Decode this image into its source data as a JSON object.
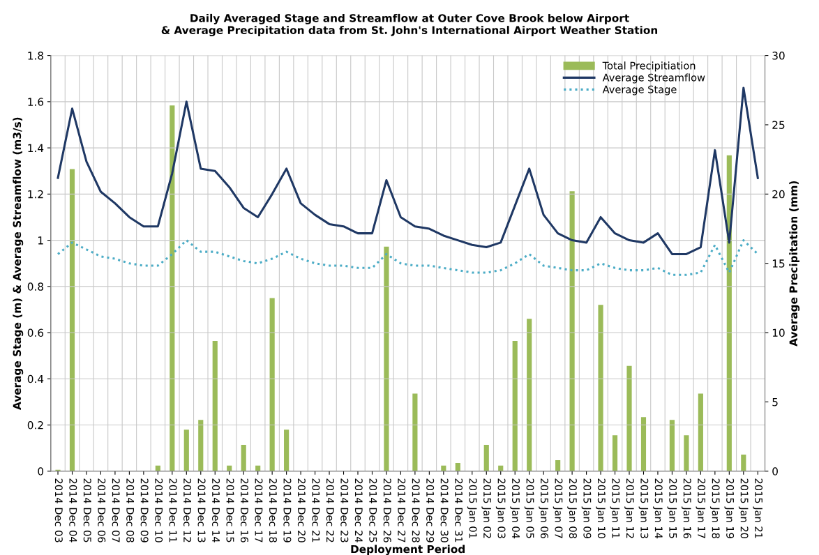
{
  "chart_data": {
    "type": "line",
    "title": "Daily Averaged Stage and Streamflow at Outer Cove Brook below Airport\n& Average Precipitation data from St. John's International Airport Weather Station",
    "xlabel": "Deployment Period",
    "ylabel": "Average Stage (m) & Average Streamflow (m3/s)",
    "y2label": "Average Precipitation (mm)",
    "categories": [
      "2014 Dec 03",
      "2014 Dec 04",
      "2014 Dec 05",
      "2014 Dec 06",
      "2014 Dec 07",
      "2014 Dec 08",
      "2014 Dec 09",
      "2014 Dec 10",
      "2014 Dec 11",
      "2014 Dec 12",
      "2014 Dec 13",
      "2014 Dec 14",
      "2014 Dec 15",
      "2014 Dec 16",
      "2014 Dec 17",
      "2014 Dec 18",
      "2014 Dec 19",
      "2014 Dec 20",
      "2014 Dec 21",
      "2014 Dec 22",
      "2014 Dec 23",
      "2014 Dec 24",
      "2014 Dec 25",
      "2014 Dec 26",
      "2014 Dec 27",
      "2014 Dec 28",
      "2014 Dec 29",
      "2014 Dec 30",
      "2014 Dec 31",
      "2015 Jan 01",
      "2015 Jan 02",
      "2015 Jan 03",
      "2015 Jan 04",
      "2015 Jan 05",
      "2015 Jan 06",
      "2015 Jan 07",
      "2015 Jan 08",
      "2015 Jan 09",
      "2015 Jan 10",
      "2015 Jan 11",
      "2015 Jan 12",
      "2015 Jan 13",
      "2015 Jan 14",
      "2015 Jan 15",
      "2015 Jan 16",
      "2015 Jan 17",
      "2015 Jan 18",
      "2015 Jan 19",
      "2015 Jan 20",
      "2015 Jan 21"
    ],
    "series": [
      {
        "name": "Total Precipitiation",
        "type": "bar",
        "axis": "y2",
        "color": "#9bbb59",
        "values": [
          0.1,
          21.8,
          0,
          0,
          0,
          0,
          0,
          0.4,
          26.4,
          3.0,
          3.7,
          9.4,
          0.4,
          1.9,
          0.4,
          12.5,
          3.0,
          0,
          0,
          0,
          0,
          0,
          0,
          16.2,
          0,
          5.6,
          0,
          0.4,
          0.6,
          0,
          1.9,
          0.4,
          9.4,
          11.0,
          0,
          0.8,
          20.2,
          0,
          12.0,
          2.6,
          7.6,
          3.9,
          0,
          3.7,
          2.6,
          5.6,
          0,
          22.8,
          1.2,
          0
        ]
      },
      {
        "name": "Average Streamflow",
        "axis": "y",
        "color": "#1f3864",
        "line_style": "solid",
        "values": [
          1.27,
          1.57,
          1.34,
          1.21,
          1.16,
          1.1,
          1.06,
          1.06,
          1.29,
          1.6,
          1.31,
          1.3,
          1.23,
          1.14,
          1.1,
          1.2,
          1.31,
          1.16,
          1.11,
          1.07,
          1.06,
          1.03,
          1.03,
          1.26,
          1.1,
          1.06,
          1.05,
          1.02,
          1.0,
          0.98,
          0.97,
          0.99,
          1.15,
          1.31,
          1.11,
          1.03,
          1.0,
          0.99,
          1.1,
          1.03,
          1.0,
          0.99,
          1.03,
          0.94,
          0.94,
          0.97,
          1.39,
          0.99,
          1.66,
          1.27
        ]
      },
      {
        "name": "Average Stage",
        "axis": "y",
        "color": "#4bacc6",
        "line_style": "dotted",
        "values": [
          0.94,
          0.99,
          0.96,
          0.93,
          0.92,
          0.9,
          0.89,
          0.89,
          0.94,
          1.0,
          0.95,
          0.95,
          0.93,
          0.91,
          0.9,
          0.92,
          0.95,
          0.92,
          0.9,
          0.89,
          0.89,
          0.88,
          0.88,
          0.94,
          0.9,
          0.89,
          0.89,
          0.88,
          0.87,
          0.86,
          0.86,
          0.87,
          0.9,
          0.94,
          0.89,
          0.88,
          0.87,
          0.87,
          0.9,
          0.88,
          0.87,
          0.87,
          0.88,
          0.85,
          0.85,
          0.86,
          0.98,
          0.86,
          1.0,
          0.94
        ]
      }
    ],
    "ylim": [
      0,
      1.8
    ],
    "yticks": [
      {
        "value": 0,
        "label": "0"
      },
      {
        "value": 0.2,
        "label": "0.2"
      },
      {
        "value": 0.4,
        "label": "0.4"
      },
      {
        "value": 0.6,
        "label": "0.6"
      },
      {
        "value": 0.8,
        "label": "0.8"
      },
      {
        "value": 1,
        "label": "1"
      },
      {
        "value": 1.2,
        "label": "1.2"
      },
      {
        "value": 1.4,
        "label": "1.4"
      },
      {
        "value": 1.6,
        "label": "1.6"
      },
      {
        "value": 1.8,
        "label": "1.8"
      }
    ],
    "y2lim": [
      0,
      30
    ],
    "y2ticks": [
      0,
      5,
      10,
      15,
      20,
      25,
      30
    ],
    "grid": true,
    "legend": "top right",
    "marker": "none"
  }
}
